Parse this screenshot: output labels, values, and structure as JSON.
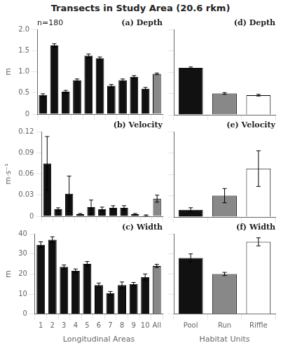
{
  "chart_data": [
    {
      "type": "bar",
      "title": "Transects in Study Area (20.6 rkm)",
      "categories": [
        null,
        null,
        null,
        null,
        null,
        null,
        null,
        null,
        null,
        null,
        null
      ],
      "values": [
        0.45,
        1.62,
        0.53,
        0.8,
        1.38,
        1.32,
        0.67,
        0.8,
        0.88,
        0.6,
        0.95
      ],
      "errors": [
        0.03,
        0.04,
        0.03,
        0.03,
        0.04,
        0.03,
        0.03,
        0.03,
        0.03,
        0.03,
        0.02
      ],
      "colors": [
        "#111111",
        "#111111",
        "#111111",
        "#111111",
        "#111111",
        "#111111",
        "#111111",
        "#111111",
        "#111111",
        "#111111",
        "#888888"
      ],
      "ylim": [
        0,
        2.0
      ],
      "yticks": [
        0,
        0.5,
        {
          "value": 1.0,
          "label": "1.0"
        },
        1.5,
        {
          "value": 2.0,
          "label": "2.0"
        }
      ],
      "ylabel": "m",
      "annotations": [
        "n=180",
        "(a) Depth"
      ],
      "tick_labels": "y",
      "grid": false
    },
    {
      "type": "bar",
      "categories": [
        null,
        null,
        null
      ],
      "values": [
        1.1,
        0.5,
        0.46
      ],
      "errors": [
        0.02,
        0.02,
        0.02
      ],
      "colors": [
        "#111111",
        "#888888",
        "#ffffff"
      ],
      "ylim": [
        0,
        2.0
      ],
      "yticks": [
        0,
        0.5,
        {
          "value": 1.0,
          "label": "1.0"
        },
        1.5,
        {
          "value": 2.0,
          "label": "2.0"
        }
      ],
      "annotations": [
        "(d) Depth"
      ],
      "tick_labels": false,
      "grid": false
    },
    {
      "type": "bar",
      "categories": [
        null,
        null,
        null,
        null,
        null,
        null,
        null,
        null,
        null,
        null,
        null
      ],
      "values": [
        0.075,
        0.01,
        0.032,
        0.003,
        0.013,
        0.01,
        0.012,
        0.012,
        0.003,
        0.001,
        0.025
      ],
      "errors": [
        0.038,
        0.002,
        0.025,
        0.001,
        0.01,
        0.003,
        0.003,
        0.003,
        0.001,
        0.001,
        0.005
      ],
      "colors": [
        "#111111",
        "#111111",
        "#111111",
        "#111111",
        "#111111",
        "#111111",
        "#111111",
        "#111111",
        "#111111",
        "#111111",
        "#888888"
      ],
      "ylim": [
        0,
        0.12
      ],
      "yticks": [
        0,
        0.03,
        0.06,
        0.09,
        0.12
      ],
      "ylabel": "m·s⁻¹",
      "annotations": [
        "(b) Velocity"
      ],
      "tick_labels": "y",
      "grid": false
    },
    {
      "type": "bar",
      "categories": [
        null,
        null,
        null
      ],
      "values": [
        0.01,
        0.03,
        0.068
      ],
      "errors": [
        0.003,
        0.01,
        0.025
      ],
      "colors": [
        "#111111",
        "#888888",
        "#ffffff"
      ],
      "ylim": [
        0,
        0.12
      ],
      "yticks": [
        0,
        0.03,
        0.06,
        0.09,
        0.12
      ],
      "annotations": [
        "(e) Velocity"
      ],
      "tick_labels": false,
      "grid": false
    },
    {
      "type": "bar",
      "categories": [
        "1",
        "2",
        "3",
        "4",
        "5",
        "6",
        "7",
        "8",
        "9",
        "10",
        "All"
      ],
      "values": [
        34.5,
        37.0,
        23.5,
        21.5,
        25.0,
        14.5,
        10.5,
        14.5,
        15.0,
        18.5,
        24.0
      ],
      "errors": [
        1.5,
        1.5,
        1.0,
        1.0,
        1.2,
        1.0,
        0.8,
        1.5,
        0.8,
        1.5,
        0.8
      ],
      "colors": [
        "#111111",
        "#111111",
        "#111111",
        "#111111",
        "#111111",
        "#111111",
        "#111111",
        "#111111",
        "#111111",
        "#111111",
        "#888888"
      ],
      "ylim": [
        0,
        40
      ],
      "yticks": [
        0,
        10,
        20,
        30,
        40
      ],
      "ylabel": "m",
      "xlabel": "Longitudinal Areas",
      "annotations": [
        "(c) Width"
      ],
      "grid": false
    },
    {
      "type": "bar",
      "categories": [
        "Pool",
        "Run",
        "Riffle"
      ],
      "values": [
        28.0,
        20.0,
        36.0
      ],
      "errors": [
        2.0,
        0.8,
        2.0
      ],
      "colors": [
        "#111111",
        "#888888",
        "#ffffff"
      ],
      "ylim": [
        0,
        40
      ],
      "yticks": [
        0,
        10,
        20,
        30,
        40
      ],
      "xlabel": "Habitat Units",
      "annotations": [
        "(f) Width"
      ],
      "tick_labels": "x",
      "grid": false
    }
  ]
}
